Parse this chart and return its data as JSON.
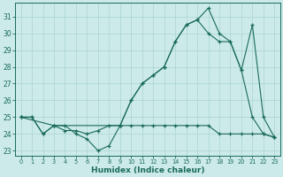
{
  "xlabel": "Humidex (Indice chaleur)",
  "bg_color": "#cceaea",
  "line_color": "#1a6b5a",
  "grid_color": "#aad4d4",
  "xlim": [
    -0.5,
    23.5
  ],
  "ylim": [
    22.7,
    31.8
  ],
  "yticks": [
    23,
    24,
    25,
    26,
    27,
    28,
    29,
    30,
    31
  ],
  "xticks": [
    0,
    1,
    2,
    3,
    4,
    5,
    6,
    7,
    8,
    9,
    10,
    11,
    12,
    13,
    14,
    15,
    16,
    17,
    18,
    19,
    20,
    21,
    22,
    23
  ],
  "series1_x": [
    0,
    1,
    2,
    3,
    4,
    5,
    6,
    7,
    8,
    9,
    10,
    11,
    12,
    13,
    14,
    15,
    16,
    17,
    18,
    19,
    20,
    21,
    22,
    23
  ],
  "series1_y": [
    25.0,
    25.0,
    24.0,
    24.5,
    24.5,
    24.0,
    23.7,
    23.0,
    23.3,
    24.5,
    26.0,
    27.0,
    27.5,
    28.0,
    29.5,
    30.5,
    30.8,
    31.5,
    30.0,
    29.5,
    27.8,
    25.0,
    24.0,
    23.8
  ],
  "series2_x": [
    0,
    1,
    2,
    3,
    4,
    5,
    6,
    7,
    8,
    9,
    10,
    11,
    12,
    13,
    14,
    15,
    16,
    17,
    18,
    19,
    20,
    21,
    22,
    23
  ],
  "series2_y": [
    25.0,
    25.0,
    24.0,
    24.5,
    24.2,
    24.2,
    24.0,
    24.2,
    24.5,
    24.5,
    24.5,
    24.5,
    24.5,
    24.5,
    24.5,
    24.5,
    24.5,
    24.5,
    24.0,
    24.0,
    24.0,
    24.0,
    24.0,
    23.8
  ],
  "series3_x": [
    0,
    3,
    9,
    10,
    11,
    12,
    13,
    14,
    15,
    16,
    17,
    18,
    19,
    20,
    21,
    22,
    23
  ],
  "series3_y": [
    25.0,
    24.5,
    24.5,
    26.0,
    27.0,
    27.5,
    28.0,
    29.5,
    30.5,
    30.8,
    30.0,
    29.5,
    29.5,
    27.8,
    30.5,
    25.0,
    23.8
  ]
}
